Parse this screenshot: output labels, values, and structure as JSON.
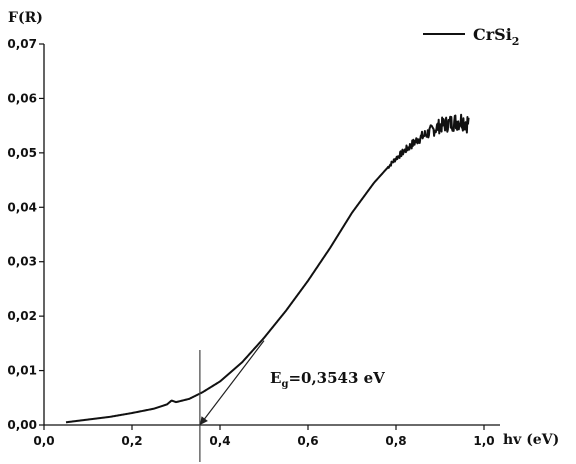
{
  "chart_data": {
    "type": "line",
    "ylabel": "F(R)",
    "xlabel": "hv (eV)",
    "xlim": [
      0.0,
      1.0
    ],
    "ylim": [
      0.0,
      0.07
    ],
    "x_ticks": [
      "0,0",
      "0,2",
      "0,4",
      "0,6",
      "0,8",
      "1,0"
    ],
    "y_ticks": [
      "0,00",
      "0,01",
      "0,02",
      "0,03",
      "0,04",
      "0,05",
      "0,06",
      "0,07"
    ],
    "legend": {
      "label_base": "CrSi",
      "label_sub": "2",
      "placement": "top-right"
    },
    "grid": false,
    "series": [
      {
        "name": "CrSi2",
        "color": "#111111",
        "x": [
          0.05,
          0.1,
          0.15,
          0.2,
          0.25,
          0.28,
          0.29,
          0.3,
          0.33,
          0.36,
          0.4,
          0.45,
          0.5,
          0.55,
          0.6,
          0.65,
          0.7,
          0.75,
          0.8,
          0.85,
          0.9,
          0.95,
          0.965
        ],
        "y": [
          0.0005,
          0.001,
          0.0015,
          0.0022,
          0.003,
          0.0038,
          0.0045,
          0.0042,
          0.0048,
          0.006,
          0.008,
          0.0115,
          0.016,
          0.021,
          0.0265,
          0.0325,
          0.039,
          0.0445,
          0.049,
          0.0525,
          0.055,
          0.056,
          0.0555
        ],
        "noise_start_x": 0.78
      }
    ],
    "annotation": {
      "label_base": "E",
      "label_sub": "g",
      "label_rest": "=0,3543 eV",
      "value": 0.3543,
      "tangent": {
        "x1": 0.3543,
        "y1": 0.0,
        "x2": 0.5,
        "y2": 0.0155
      }
    }
  }
}
